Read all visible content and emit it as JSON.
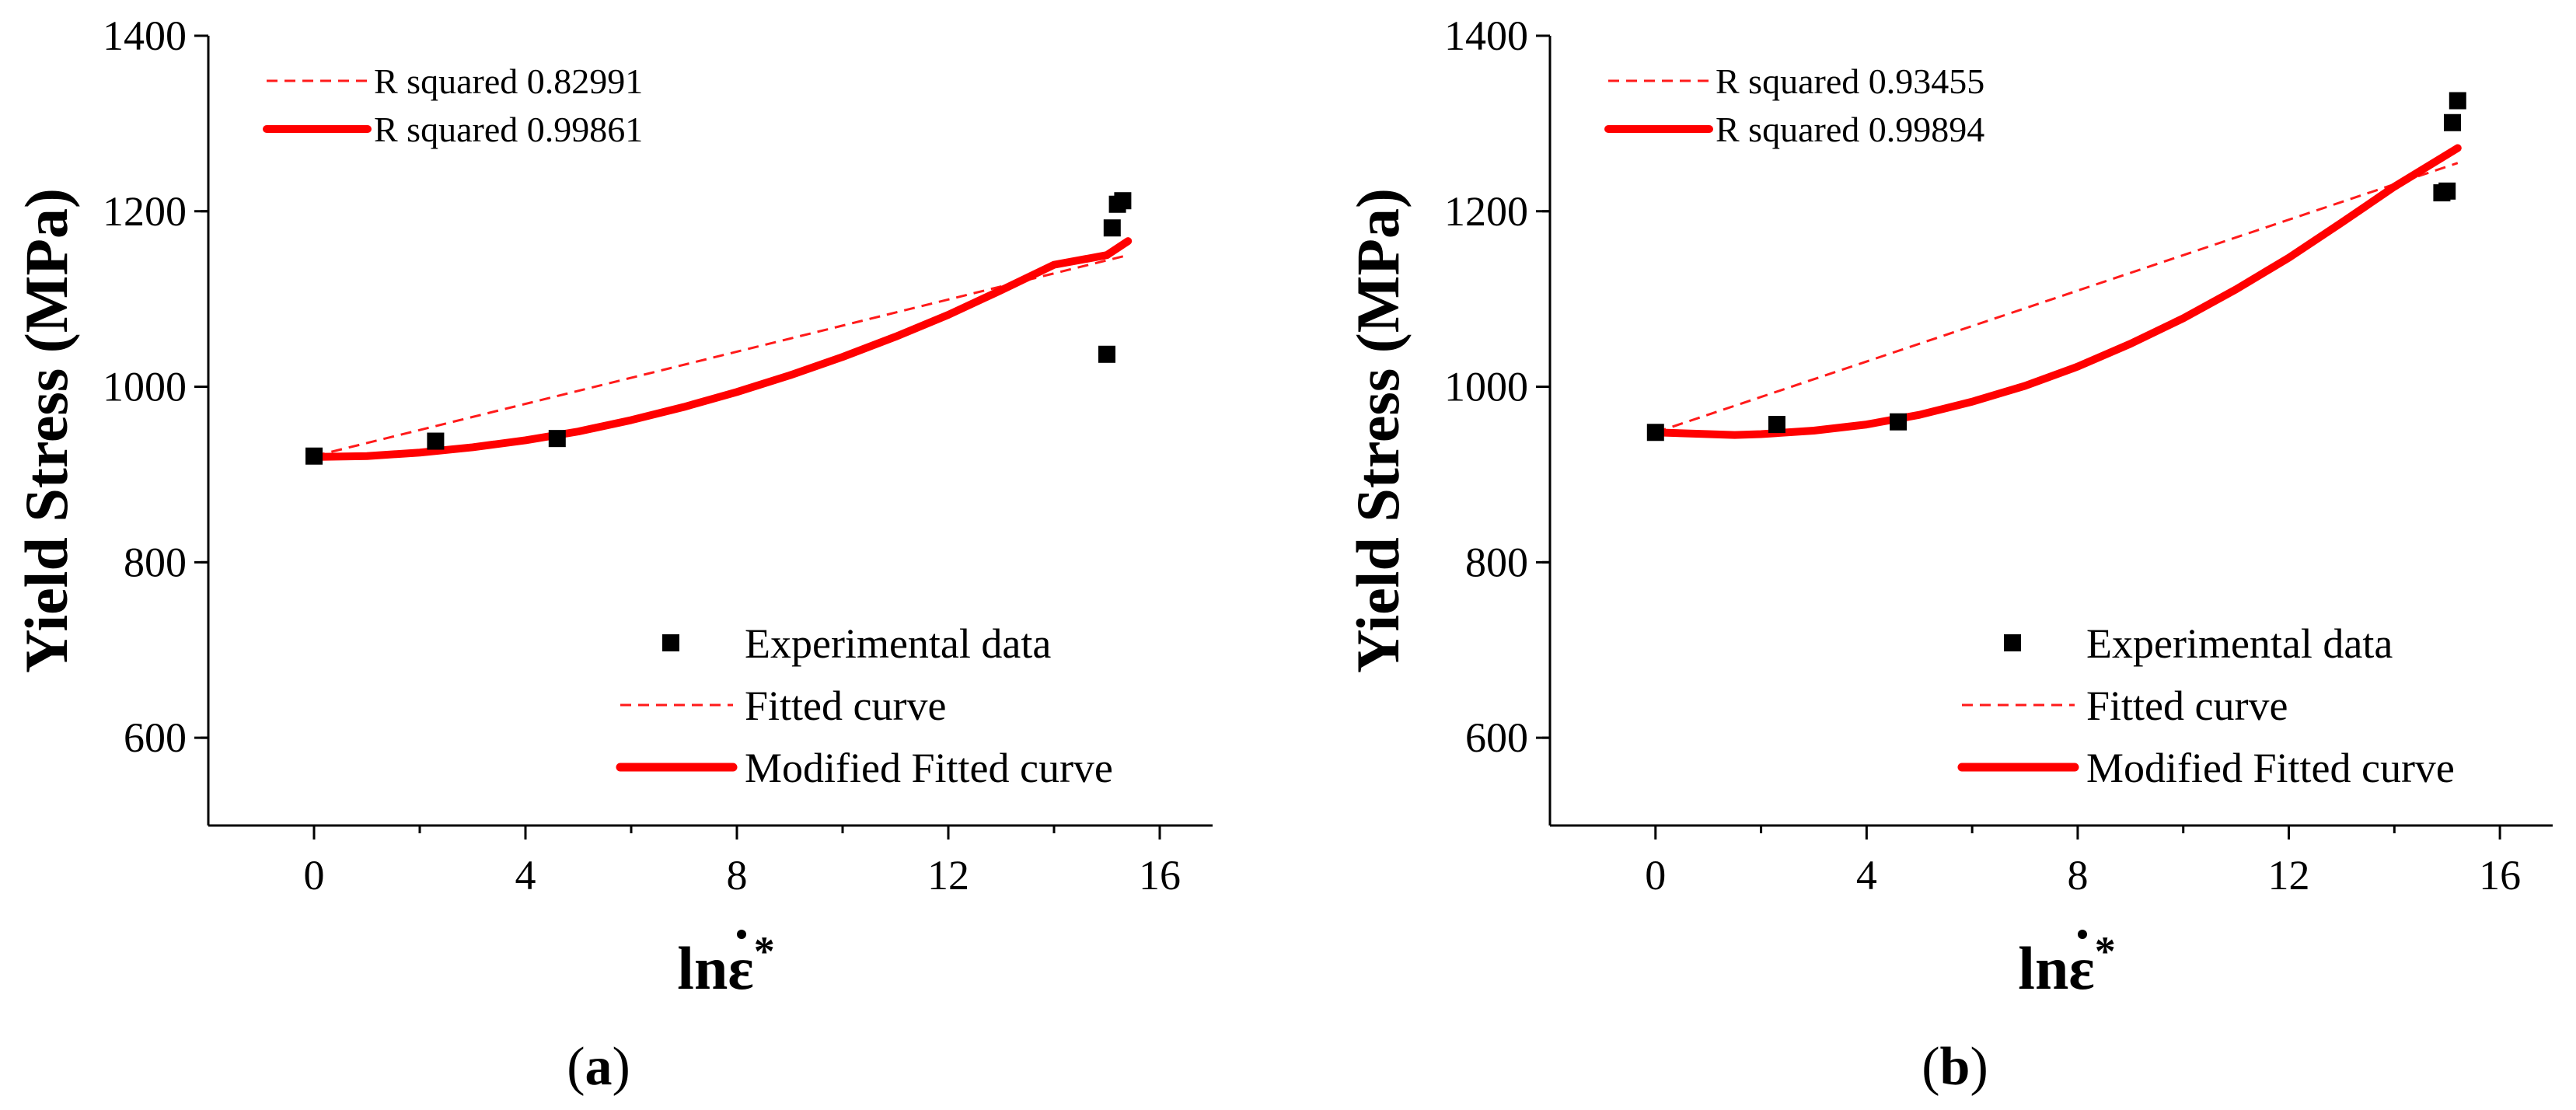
{
  "chart_data": [
    {
      "type": "scatter",
      "panel_label": "a",
      "xlabel_main": "lnε",
      "xlabel_sup": "*",
      "ylabel": "Yield Stress (MPa)",
      "xlim": [
        -2,
        17
      ],
      "ylim": [
        500,
        1400
      ],
      "xticks": [
        0,
        4,
        8,
        12,
        16
      ],
      "yticks": [
        600,
        800,
        1000,
        1200,
        1400
      ],
      "legend_position": "bottom-right",
      "legend": {
        "experimental": "Experimental data",
        "fitted": "Fitted curve",
        "modified": "Modified Fitted curve"
      },
      "r_squared_legend_position": "top-left",
      "r_squared": [
        {
          "label": "R squared 0.82991",
          "style": "dashed"
        },
        {
          "label": "R squared 0.99861",
          "style": "solid"
        }
      ],
      "experimental": {
        "x": [
          0,
          2.3,
          4.6,
          15.0,
          15.1,
          15.2,
          15.3
        ],
        "y": [
          921,
          938,
          941,
          1037,
          1181,
          1208,
          1212
        ]
      },
      "fitted_curve": {
        "x": [
          0,
          15.4
        ],
        "y": [
          921,
          1150
        ]
      },
      "modified_fitted_curve": {
        "x": [
          0,
          1,
          2,
          3,
          4,
          5,
          6,
          7,
          8,
          9,
          10,
          11,
          12,
          13,
          14,
          15,
          15.4
        ],
        "y": [
          920,
          921,
          925,
          931,
          939,
          949,
          962,
          977,
          994,
          1013,
          1034,
          1057,
          1082,
          1110,
          1139,
          1150,
          1166
        ]
      }
    },
    {
      "type": "scatter",
      "panel_label": "b",
      "xlabel_main": "lnε",
      "xlabel_sup": "*",
      "ylabel": "Yield Stress (MPa)",
      "xlim": [
        -2,
        17
      ],
      "ylim": [
        500,
        1400
      ],
      "xticks": [
        0,
        4,
        8,
        12,
        16
      ],
      "yticks": [
        600,
        800,
        1000,
        1200,
        1400
      ],
      "legend_position": "bottom-right",
      "legend": {
        "experimental": "Experimental data",
        "fitted": "Fitted curve",
        "modified": "Modified Fitted curve"
      },
      "r_squared_legend_position": "top-left",
      "r_squared": [
        {
          "label": "R squared 0.93455",
          "style": "dashed"
        },
        {
          "label": "R squared 0.99894",
          "style": "solid"
        }
      ],
      "experimental": {
        "x": [
          0,
          2.3,
          4.6,
          14.9,
          15.0,
          15.1,
          15.2
        ],
        "y": [
          948,
          957,
          960,
          1221,
          1223,
          1301,
          1326
        ]
      },
      "fitted_curve": {
        "x": [
          0,
          15.2
        ],
        "y": [
          948,
          1255
        ]
      },
      "modified_fitted_curve": {
        "x": [
          0,
          1,
          1.5,
          2,
          3,
          4,
          5,
          6,
          7,
          8,
          9,
          10,
          11,
          12,
          13,
          14,
          15.2
        ],
        "y": [
          948,
          946,
          945,
          946,
          950,
          957,
          968,
          983,
          1001,
          1023,
          1049,
          1078,
          1111,
          1147,
          1187,
          1228,
          1272
        ]
      }
    }
  ]
}
